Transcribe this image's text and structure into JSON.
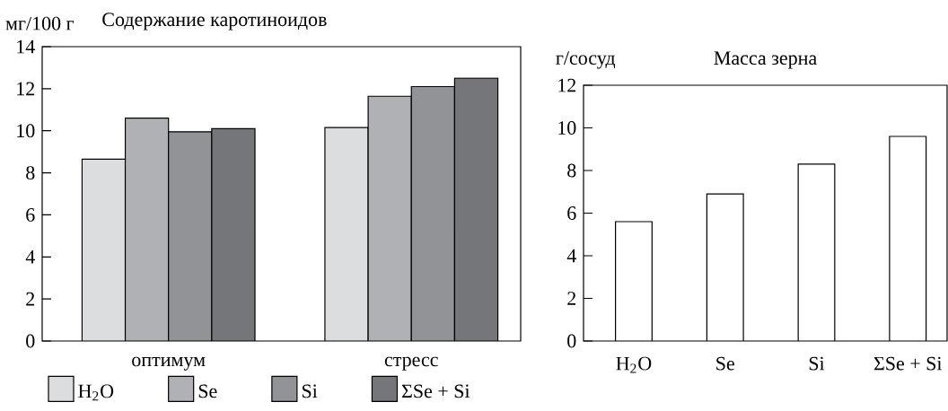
{
  "chart_data": [
    {
      "type": "bar",
      "title": "Содержание каротиноидов",
      "ylabel": "мг/100 г",
      "categories": [
        "оптимум",
        "стресс"
      ],
      "series": [
        {
          "name": "H$_{2}$O",
          "color": "#dcdddf",
          "values": [
            8.65,
            10.15
          ]
        },
        {
          "name": "Se",
          "color": "#b0b1b5",
          "values": [
            10.6,
            11.65
          ]
        },
        {
          "name": "Si",
          "color": "#929397",
          "values": [
            9.95,
            12.1
          ]
        },
        {
          "name": "ΣSe + Si",
          "color": "#75767a",
          "values": [
            10.1,
            12.5
          ]
        }
      ],
      "ylim": [
        0,
        14
      ],
      "yticks": [
        0,
        2,
        4,
        6,
        8,
        10,
        12,
        14
      ],
      "legend": "bottom"
    },
    {
      "type": "bar",
      "title": "Масса зерна",
      "ylabel": "г/сосуд",
      "categories": [
        "H$_{2}$O",
        "Se",
        "Si",
        "ΣSe + Si"
      ],
      "values": [
        5.6,
        6.9,
        8.3,
        9.6
      ],
      "colors": [
        "#ffffff",
        "#ffffff",
        "#ffffff",
        "#ffffff"
      ],
      "ylim": [
        0,
        12
      ],
      "yticks": [
        0,
        2,
        4,
        6,
        8,
        10,
        12
      ]
    }
  ]
}
